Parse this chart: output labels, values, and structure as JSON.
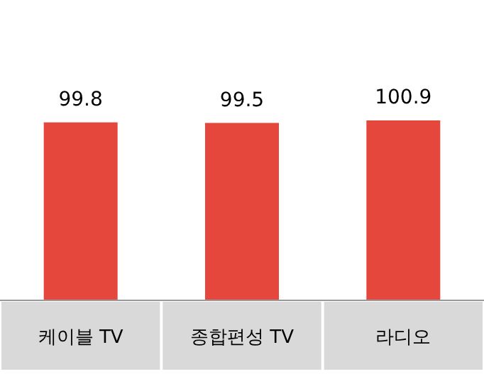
{
  "chart_data": {
    "type": "bar",
    "categories": [
      "케이블 TV",
      "종합편성 TV",
      "라디오"
    ],
    "values": [
      99.8,
      99.5,
      100.9
    ],
    "color": "#e5473d",
    "data_labels": true
  }
}
